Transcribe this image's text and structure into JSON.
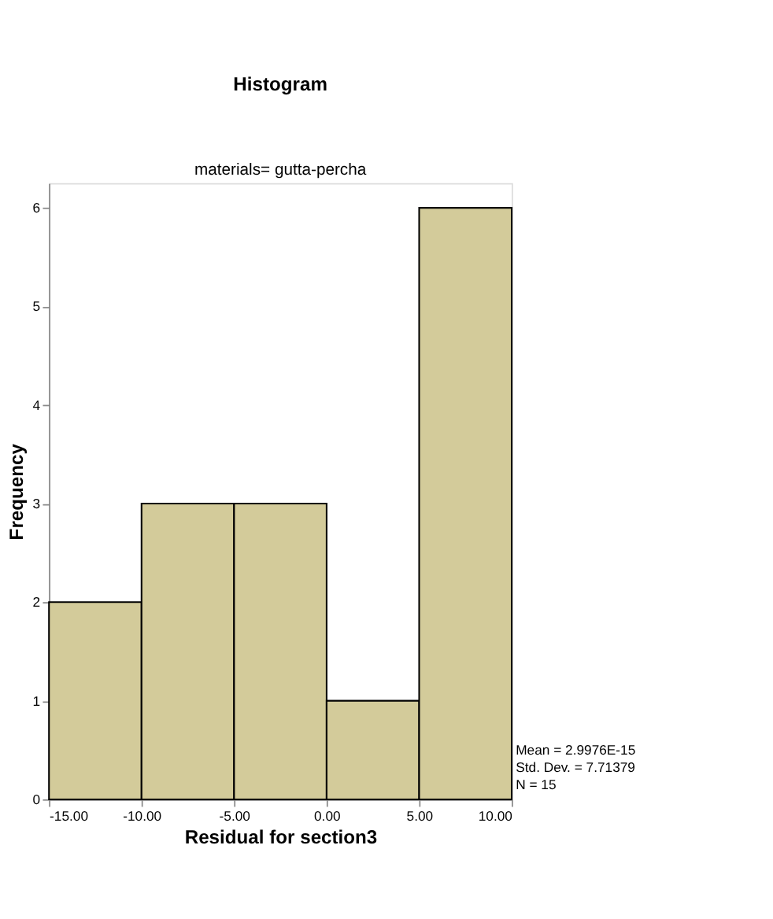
{
  "chart_data": {
    "type": "histogram",
    "title": "Histogram",
    "subtitle": "materials= gutta-percha",
    "xlabel": "Residual for section3",
    "ylabel": "Frequency",
    "bins": [
      -15,
      -10,
      -5,
      0,
      5,
      10
    ],
    "values": [
      2,
      3,
      3,
      1,
      6
    ],
    "color": "#d3cb9a",
    "xlim": [
      -15,
      10
    ],
    "xticks": [
      {
        "value": -15,
        "label": "-15.00"
      },
      {
        "value": -10,
        "label": "-10.00"
      },
      {
        "value": -5,
        "label": "-5.00"
      },
      {
        "value": 0,
        "label": "0.00"
      },
      {
        "value": 5,
        "label": "5.00"
      },
      {
        "value": 10,
        "label": "10.00"
      }
    ],
    "ylim": [
      0,
      6.25
    ],
    "yticks": [
      0,
      1,
      2,
      3,
      4,
      5,
      6
    ],
    "grid": false,
    "annotations": [
      "Mean = 2.9976E-15",
      "Std. Dev. = 7.71379",
      "N = 15"
    ]
  }
}
